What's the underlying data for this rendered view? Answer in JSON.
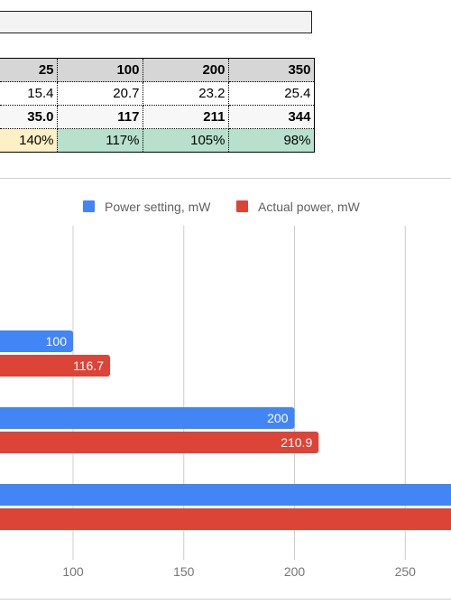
{
  "sheet": {
    "rows": [
      {
        "name": "header",
        "cells": [
          "25",
          "100",
          "200",
          "350"
        ]
      },
      {
        "name": "measured",
        "cells": [
          "15.4",
          "20.7",
          "23.2",
          "25.4"
        ]
      },
      {
        "name": "actual",
        "cells": [
          "35.0",
          "117",
          "211",
          "344"
        ]
      },
      {
        "name": "ratio",
        "cells": [
          "140%",
          "117%",
          "105%",
          "98%"
        ]
      }
    ],
    "ratio_colors": [
      "#fdefc6",
      "#b7e1cd",
      "#b7e1cd",
      "#b7e1cd"
    ]
  },
  "chart_data": {
    "type": "bar",
    "orientation": "horizontal",
    "series": [
      {
        "name": "Power setting, mW",
        "color": "#4285f4",
        "values": [
          100,
          200,
          350
        ]
      },
      {
        "name": "Actual power, mW",
        "color": "#db4437",
        "values": [
          116.7,
          210.9,
          344
        ]
      }
    ],
    "value_labels": [
      [
        "100",
        "200",
        ""
      ],
      [
        "116.7",
        "210.9",
        ""
      ]
    ],
    "x_ticks": [
      100,
      150,
      200,
      250
    ],
    "grid": true,
    "legend_position": "top"
  }
}
